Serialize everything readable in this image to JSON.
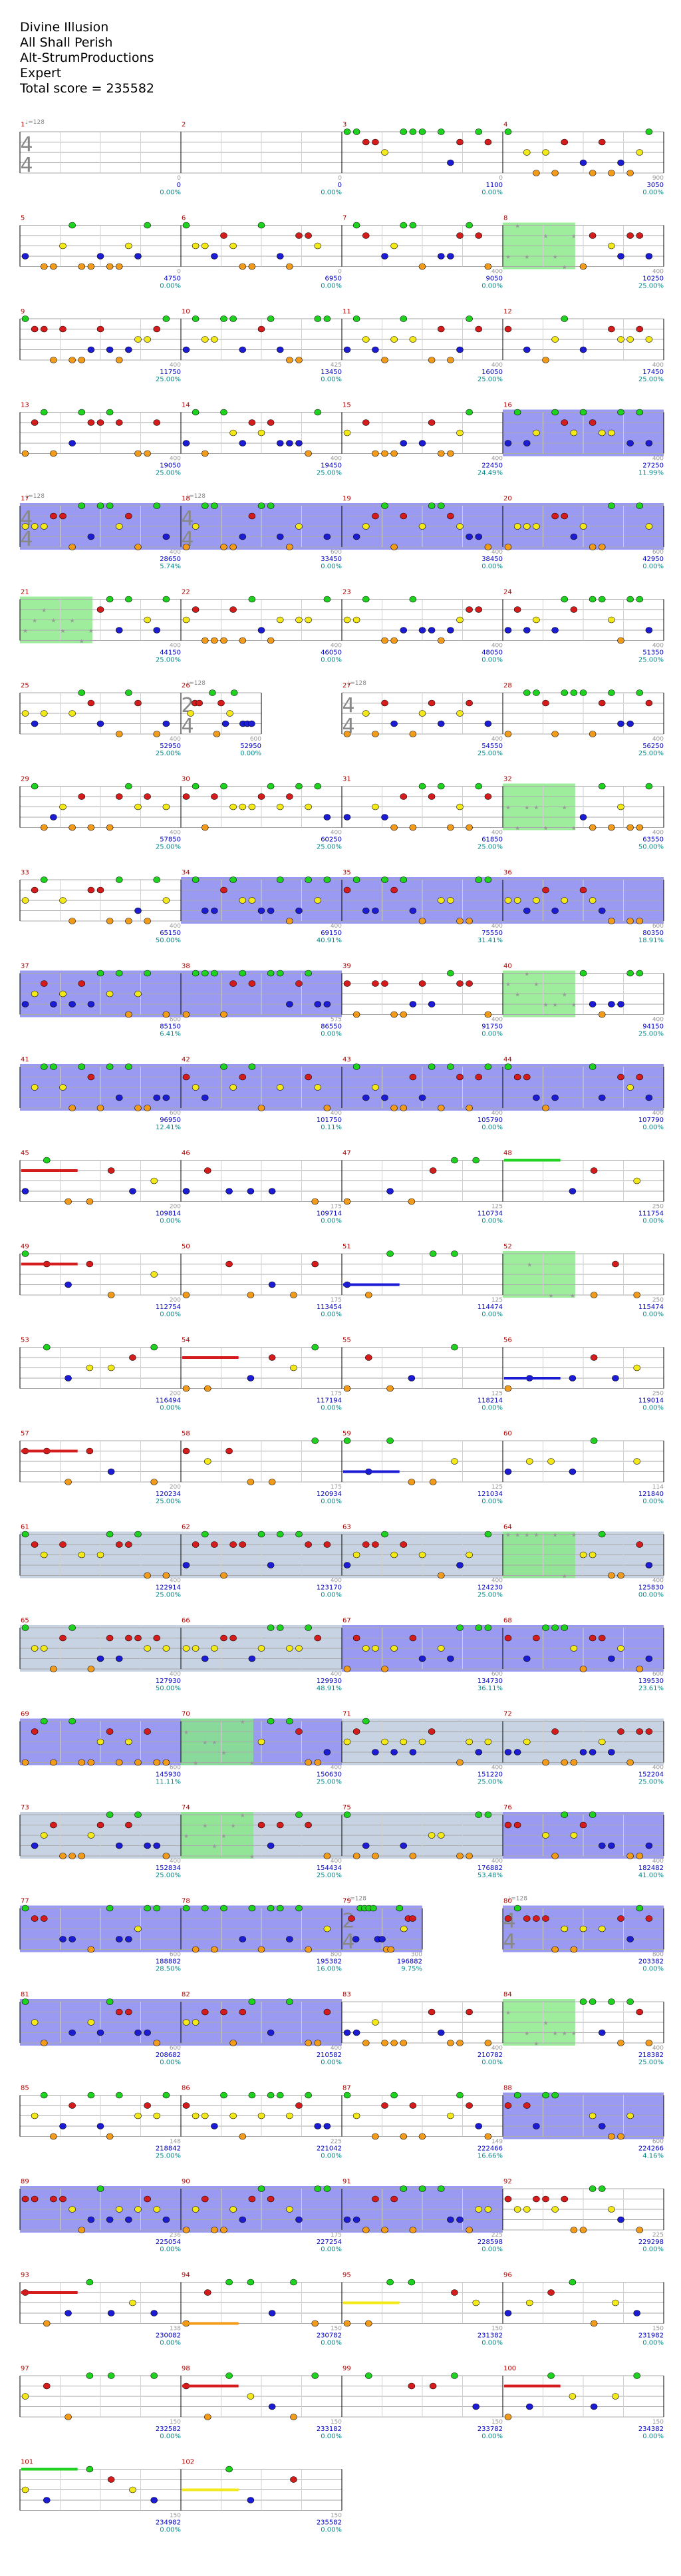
{
  "header": {
    "song": "Divine Illusion",
    "artist": "All Shall Perish",
    "charter": "Alt-StrumProductions",
    "difficulty": "Expert",
    "total_score": "Total score = 235582"
  },
  "colors": {
    "green": "#1fd21f",
    "red": "#d41c1c",
    "yellow": "#f2e81a",
    "blue": "#1c1cd4",
    "orange": "#f29a1a",
    "starpower": "#84e884",
    "solo": "#7878ee",
    "gray_section": "#c7d3e2",
    "measure_number": "#b00000",
    "score_text": "#0000c0",
    "percent_text": "#008a8a"
  },
  "chart_data": {
    "type": "note-chart",
    "measures": [
      {
        "n": "1",
        "bpm": "♩=128",
        "ts": [
          "4",
          "4"
        ],
        "tick": "0",
        "score": "0",
        "pct": "0.00%"
      },
      {
        "n": "2",
        "tick": "0",
        "score": "0",
        "pct": "0.00%"
      },
      {
        "n": "3",
        "tick": "0",
        "score": "1100",
        "pct": "0.00%"
      },
      {
        "n": "4",
        "tick": "900",
        "score": "3050",
        "pct": "0.00%"
      },
      {
        "n": "5",
        "tick": "0",
        "score": "4750",
        "pct": "0.00%"
      },
      {
        "n": "6",
        "tick": "0",
        "score": "6950",
        "pct": "0.00%"
      },
      {
        "n": "7",
        "tick": "400",
        "score": "9050",
        "pct": "0.00%"
      },
      {
        "n": "8",
        "tick": "400",
        "score": "10250",
        "pct": "25.00%"
      },
      {
        "n": "9",
        "tick": "400",
        "score": "11750",
        "pct": "25.00%"
      },
      {
        "n": "10",
        "tick": "425",
        "score": "13450",
        "pct": "0.00%"
      },
      {
        "n": "11",
        "tick": "400",
        "score": "16050",
        "pct": "25.00%"
      },
      {
        "n": "12",
        "tick": "400",
        "score": "17450",
        "pct": "25.00%"
      },
      {
        "n": "13",
        "tick": "400",
        "score": "19050",
        "pct": "25.00%"
      },
      {
        "n": "14",
        "tick": "400",
        "score": "19450",
        "pct": "25.00%"
      },
      {
        "n": "15",
        "tick": "400",
        "score": "22450",
        "pct": "24.49%"
      },
      {
        "n": "16",
        "tick": "400",
        "score": "27250",
        "pct": "11.99%"
      },
      {
        "n": "17",
        "bpm": "♩=128",
        "ts": [
          "4",
          "4"
        ],
        "tick": "400",
        "score": "28650",
        "pct": "5.74%"
      },
      {
        "n": "18",
        "bpm": "♩=128",
        "ts": [
          "4",
          "4"
        ],
        "tick": "600",
        "score": "33450",
        "pct": "0.00%"
      },
      {
        "n": "19",
        "tick": "400",
        "score": "38450",
        "pct": "0.00%"
      },
      {
        "n": "20",
        "tick": "600",
        "score": "42950",
        "pct": "0.00%"
      },
      {
        "n": "21",
        "tick": "400",
        "score": "44150",
        "pct": "25.00%"
      },
      {
        "n": "22",
        "tick": "400",
        "score": "46050",
        "pct": "0.00%"
      },
      {
        "n": "23",
        "tick": "400",
        "score": "48050",
        "pct": "0.00%"
      },
      {
        "n": "24",
        "tick": "400",
        "score": "51350",
        "pct": "25.00%"
      },
      {
        "n": "25",
        "tick": "400",
        "score": "52950",
        "pct": "25.00%"
      },
      {
        "n": "26",
        "bpm": "♩=128",
        "ts": [
          "2",
          "4"
        ],
        "tick": "600",
        "score": "52950",
        "pct": "0.00%"
      },
      {
        "n": "27",
        "bpm": "♩=128",
        "ts": [
          "4",
          "4"
        ],
        "tick": "400",
        "score": "54550",
        "pct": "25.00%"
      },
      {
        "n": "28",
        "tick": "400",
        "score": "56250",
        "pct": "25.00%"
      },
      {
        "n": "29",
        "tick": "400",
        "score": "57850",
        "pct": "25.00%"
      },
      {
        "n": "30",
        "tick": "400",
        "score": "60250",
        "pct": "25.00%"
      },
      {
        "n": "31",
        "tick": "400",
        "score": "61850",
        "pct": "25.00%"
      },
      {
        "n": "32",
        "tick": "400",
        "score": "63550",
        "pct": "50.00%"
      },
      {
        "n": "33",
        "tick": "400",
        "score": "65150",
        "pct": "50.00%"
      },
      {
        "n": "34",
        "tick": "400",
        "score": "69150",
        "pct": "40.91%"
      },
      {
        "n": "35",
        "tick": "400",
        "score": "75550",
        "pct": "31.41%"
      },
      {
        "n": "36",
        "tick": "600",
        "score": "80350",
        "pct": "18.91%"
      },
      {
        "n": "37",
        "tick": "600",
        "score": "85150",
        "pct": "6.41%"
      },
      {
        "n": "38",
        "tick": "575",
        "score": "86550",
        "pct": "0.00%"
      },
      {
        "n": "39",
        "tick": "400",
        "score": "91750",
        "pct": "0.00%"
      },
      {
        "n": "40",
        "tick": "400",
        "score": "94150",
        "pct": "25.00%"
      },
      {
        "n": "41",
        "tick": "600",
        "score": "96950",
        "pct": "12.41%"
      },
      {
        "n": "42",
        "tick": "400",
        "score": "101750",
        "pct": "0.11%"
      },
      {
        "n": "43",
        "tick": "400",
        "score": "105790",
        "pct": "0.00%"
      },
      {
        "n": "44",
        "tick": "400",
        "score": "107790",
        "pct": "0.00%"
      },
      {
        "n": "45",
        "tick": "200",
        "score": "109814",
        "pct": "0.00%"
      },
      {
        "n": "46",
        "tick": "175",
        "score": "109714",
        "pct": "0.00%"
      },
      {
        "n": "47",
        "tick": "125",
        "score": "110734",
        "pct": "0.00%"
      },
      {
        "n": "48",
        "tick": "250",
        "score": "111754",
        "pct": "0.00%"
      },
      {
        "n": "49",
        "tick": "200",
        "score": "112754",
        "pct": "0.00%"
      },
      {
        "n": "50",
        "tick": "175",
        "score": "113454",
        "pct": "0.00%"
      },
      {
        "n": "51",
        "tick": "125",
        "score": "114474",
        "pct": "0.00%"
      },
      {
        "n": "52",
        "tick": "250",
        "score": "115474",
        "pct": "0.00%"
      },
      {
        "n": "53",
        "tick": "200",
        "score": "116494",
        "pct": "0.00%"
      },
      {
        "n": "54",
        "tick": "175",
        "score": "117194",
        "pct": "0.00%"
      },
      {
        "n": "55",
        "tick": "125",
        "score": "118214",
        "pct": "0.00%"
      },
      {
        "n": "56",
        "tick": "250",
        "score": "119014",
        "pct": "0.00%"
      },
      {
        "n": "57",
        "tick": "200",
        "score": "120234",
        "pct": "25.00%"
      },
      {
        "n": "58",
        "tick": "175",
        "score": "120934",
        "pct": "0.00%"
      },
      {
        "n": "59",
        "tick": "125",
        "score": "121034",
        "pct": "0.00%"
      },
      {
        "n": "60",
        "tick": "114",
        "score": "121840",
        "pct": "0.00%"
      },
      {
        "n": "61",
        "tick": "400",
        "score": "122914",
        "pct": "25.00%"
      },
      {
        "n": "62",
        "tick": "400",
        "score": "123170",
        "pct": "0.00%"
      },
      {
        "n": "63",
        "tick": "400",
        "score": "124230",
        "pct": "25.00%"
      },
      {
        "n": "64",
        "tick": "400",
        "score": "125830",
        "pct": "00.00%"
      },
      {
        "n": "65",
        "tick": "400",
        "score": "127930",
        "pct": "50.00%"
      },
      {
        "n": "66",
        "tick": "400",
        "score": "129930",
        "pct": "48.91%"
      },
      {
        "n": "67",
        "tick": "600",
        "score": "134730",
        "pct": "36.11%"
      },
      {
        "n": "68",
        "tick": "600",
        "score": "139530",
        "pct": "23.61%"
      },
      {
        "n": "69",
        "tick": "600",
        "score": "145930",
        "pct": "11.11%"
      },
      {
        "n": "70",
        "tick": "400",
        "score": "150630",
        "pct": "25.00%"
      },
      {
        "n": "71",
        "tick": "400",
        "score": "151220",
        "pct": "25.00%"
      },
      {
        "n": "72",
        "tick": "400",
        "score": "152204",
        "pct": "25.00%"
      },
      {
        "n": "73",
        "tick": "400",
        "score": "152834",
        "pct": "25.00%"
      },
      {
        "n": "74",
        "tick": "400",
        "score": "154434",
        "pct": "25.00%"
      },
      {
        "n": "75",
        "tick": "400",
        "score": "176882",
        "pct": "53.48%"
      },
      {
        "n": "76",
        "tick": "400",
        "score": "182482",
        "pct": "41.00%"
      },
      {
        "n": "77",
        "tick": "600",
        "score": "188882",
        "pct": "28.50%"
      },
      {
        "n": "78",
        "tick": "800",
        "score": "195382",
        "pct": "16.00%"
      },
      {
        "n": "79",
        "bpm": "♩=128",
        "ts": [
          "2",
          "4"
        ],
        "tick": "300",
        "score": "196882",
        "pct": "9.75%"
      },
      {
        "n": "80",
        "bpm": "♩=128",
        "ts": [
          "4",
          "4"
        ],
        "tick": "800",
        "score": "203382",
        "pct": "0.00%"
      },
      {
        "n": "81",
        "tick": "600",
        "score": "208682",
        "pct": "0.00%"
      },
      {
        "n": "82",
        "tick": "400",
        "score": "210582",
        "pct": "0.00%"
      },
      {
        "n": "83",
        "tick": "400",
        "score": "210782",
        "pct": "0.00%"
      },
      {
        "n": "84",
        "tick": "400",
        "score": "218382",
        "pct": "25.00%"
      },
      {
        "n": "85",
        "tick": "148",
        "score": "218842",
        "pct": "25.00%"
      },
      {
        "n": "86",
        "tick": "225",
        "score": "221042",
        "pct": "0.00%"
      },
      {
        "n": "87",
        "tick": "149",
        "score": "222466",
        "pct": "16.66%"
      },
      {
        "n": "88",
        "tick": "600",
        "score": "224266",
        "pct": "4.16%"
      },
      {
        "n": "89",
        "tick": "236",
        "score": "225054",
        "pct": "0.00%"
      },
      {
        "n": "90",
        "tick": "175",
        "score": "227254",
        "pct": "0.00%"
      },
      {
        "n": "91",
        "tick": "225",
        "score": "228598",
        "pct": "0.00%"
      },
      {
        "n": "92",
        "tick": "225",
        "score": "229298",
        "pct": "0.00%"
      },
      {
        "n": "93",
        "tick": "138",
        "score": "230082",
        "pct": "0.00%"
      },
      {
        "n": "94",
        "tick": "150",
        "score": "230782",
        "pct": "0.00%"
      },
      {
        "n": "95",
        "tick": "150",
        "score": "231382",
        "pct": "0.00%"
      },
      {
        "n": "96",
        "tick": "150",
        "score": "231982",
        "pct": "0.00%"
      },
      {
        "n": "97",
        "tick": "150",
        "score": "232582",
        "pct": "0.00%"
      },
      {
        "n": "98",
        "tick": "150",
        "score": "233182",
        "pct": "0.00%"
      },
      {
        "n": "99",
        "tick": "150",
        "score": "233782",
        "pct": "0.00%"
      },
      {
        "n": "100",
        "tick": "150",
        "score": "234382",
        "pct": "0.00%"
      },
      {
        "n": "101",
        "tick": "150",
        "score": "234982",
        "pct": "0.00%"
      },
      {
        "n": "102",
        "tick": "150",
        "score": "235582",
        "pct": "0.00%"
      }
    ]
  }
}
